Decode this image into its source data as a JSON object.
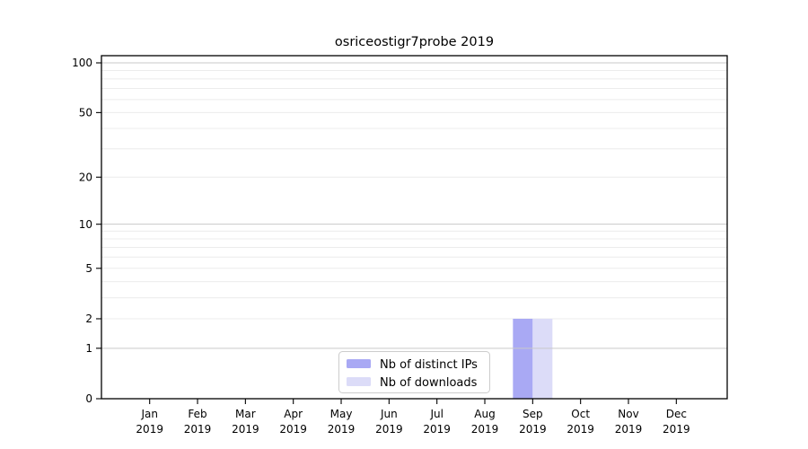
{
  "figure": {
    "background": "#ffffff"
  },
  "chart_data": {
    "type": "bar",
    "title": "osriceostigr7probe 2019",
    "categories": [
      "Jan",
      "Feb",
      "Mar",
      "Apr",
      "May",
      "Jun",
      "Jul",
      "Aug",
      "Sep",
      "Oct",
      "Nov",
      "Dec"
    ],
    "x_tick_second_line": "2019",
    "series": [
      {
        "name": "Nb of distinct IPs",
        "color": "#a9a9f4",
        "values": [
          0,
          0,
          0,
          0,
          0,
          0,
          0,
          0,
          2,
          0,
          0,
          0
        ]
      },
      {
        "name": "Nb of downloads",
        "color": "#dcdcf8",
        "values": [
          0,
          0,
          0,
          0,
          0,
          0,
          0,
          0,
          2,
          0,
          0,
          0
        ]
      }
    ],
    "xlabel": "",
    "ylabel": "",
    "y_axis": {
      "scale": "log1p",
      "tick_values": [
        0,
        1,
        2,
        5,
        10,
        20,
        50,
        100
      ],
      "major_grid_values": [
        1,
        10,
        100
      ],
      "minor_grid_values": [
        2,
        3,
        4,
        5,
        6,
        7,
        8,
        9,
        20,
        30,
        40,
        50,
        60,
        70,
        80,
        90
      ],
      "ylim_top_value": 110
    },
    "grid": "horizontal",
    "legend": {
      "position": "bottom-center",
      "entries": [
        "Nb of distinct IPs",
        "Nb of downloads"
      ]
    },
    "colors": {
      "axis": "#000000",
      "text": "#000000",
      "major_grid": "#c9c9c9",
      "minor_grid": "#ececec",
      "legend_border": "#cccccc",
      "legend_background": "#ffffff",
      "background": "#ffffff"
    }
  }
}
